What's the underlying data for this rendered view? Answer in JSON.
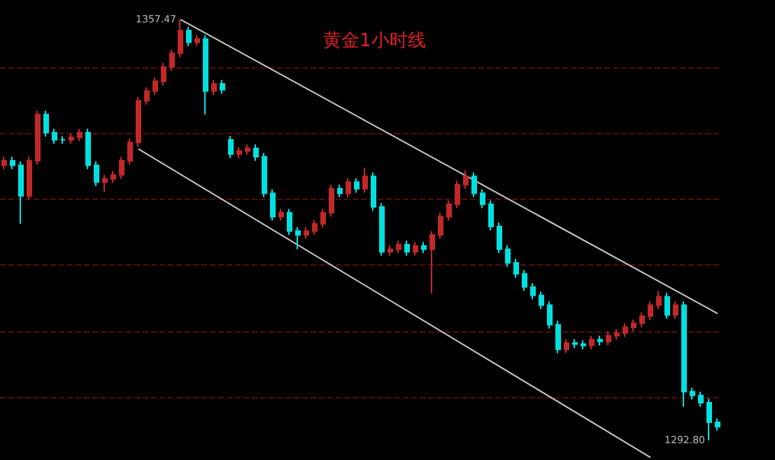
{
  "chart_data": {
    "type": "candlestick",
    "title": "黄金1小时线",
    "categories": [
      null,
      null,
      null,
      null,
      null,
      null,
      null,
      null,
      null,
      null,
      null,
      null,
      null,
      null,
      null,
      null,
      null,
      null,
      null,
      null,
      null,
      null,
      null,
      null,
      null,
      null,
      null,
      null,
      null,
      null,
      null,
      null,
      null,
      null,
      null,
      null,
      null,
      null,
      null,
      null,
      null,
      null,
      null,
      null,
      null,
      null,
      null,
      null,
      null,
      null,
      null,
      null,
      null,
      null,
      null,
      null,
      null,
      null,
      null,
      null,
      null,
      null,
      null,
      null,
      null,
      null,
      null,
      null,
      null,
      null,
      null,
      null,
      null,
      null,
      null,
      null,
      null,
      null,
      null,
      null,
      null,
      null,
      null,
      null,
      null,
      null
    ],
    "ohlc": [
      [
        1335.1,
        1336.4,
        1334.5,
        1335.8
      ],
      [
        1335.8,
        1336.4,
        1334.5,
        1335.1
      ],
      [
        1335.1,
        1335.7,
        1326.1,
        1330.4
      ],
      [
        1330.4,
        1336.4,
        1329.8,
        1335.8
      ],
      [
        1335.8,
        1343.5,
        1335.2,
        1342.9
      ],
      [
        1342.9,
        1343.5,
        1339.5,
        1340.1
      ],
      [
        1340.1,
        1340.7,
        1338.4,
        1339.0
      ],
      [
        1339.0,
        1339.6,
        1338.4,
        1339.0
      ],
      [
        1339.0,
        1340.0,
        1338.4,
        1339.4
      ],
      [
        1339.4,
        1340.7,
        1338.8,
        1340.1
      ],
      [
        1340.1,
        1340.7,
        1334.5,
        1335.1
      ],
      [
        1335.1,
        1335.7,
        1331.9,
        1332.5
      ],
      [
        1332.5,
        1333.6,
        1331.0,
        1333.0
      ],
      [
        1333.0,
        1334.2,
        1332.4,
        1333.6
      ],
      [
        1333.6,
        1336.4,
        1333.0,
        1335.8
      ],
      [
        1335.8,
        1339.2,
        1335.2,
        1338.6
      ],
      [
        1338.6,
        1345.6,
        1338.0,
        1345.0
      ],
      [
        1345.0,
        1347.1,
        1344.4,
        1346.5
      ],
      [
        1346.5,
        1348.6,
        1345.9,
        1348.0
      ],
      [
        1348.0,
        1350.8,
        1347.4,
        1350.2
      ],
      [
        1350.2,
        1352.9,
        1349.6,
        1352.3
      ],
      [
        1352.3,
        1357.47,
        1351.7,
        1355.8
      ],
      [
        1355.8,
        1356.4,
        1353.4,
        1354.0
      ],
      [
        1354.0,
        1355.1,
        1353.4,
        1354.5
      ],
      [
        1354.5,
        1355.1,
        1342.9,
        1346.5
      ],
      [
        1346.5,
        1348.2,
        1345.9,
        1347.6
      ],
      [
        1347.6,
        1348.2,
        1346.1,
        1346.7
      ],
      [
        1339.0,
        1339.6,
        1336.2,
        1336.8
      ],
      [
        1336.8,
        1337.9,
        1336.2,
        1337.3
      ],
      [
        1337.3,
        1338.3,
        1336.7,
        1337.7
      ],
      [
        1337.7,
        1338.3,
        1335.8,
        1336.4
      ],
      [
        1336.4,
        1337.0,
        1330.2,
        1330.8
      ],
      [
        1330.8,
        1331.4,
        1326.6,
        1327.2
      ],
      [
        1327.2,
        1328.4,
        1326.6,
        1327.8
      ],
      [
        1327.8,
        1328.4,
        1324.4,
        1325.0
      ],
      [
        1325.0,
        1325.6,
        1322.2,
        1324.4
      ],
      [
        1324.4,
        1325.6,
        1323.8,
        1325.0
      ],
      [
        1325.0,
        1326.7,
        1324.4,
        1326.1
      ],
      [
        1326.1,
        1328.4,
        1325.5,
        1327.8
      ],
      [
        1327.8,
        1332.1,
        1327.2,
        1331.5
      ],
      [
        1331.5,
        1332.1,
        1330.2,
        1330.8
      ],
      [
        1330.8,
        1333.1,
        1330.2,
        1332.5
      ],
      [
        1332.5,
        1333.1,
        1330.9,
        1331.5
      ],
      [
        1331.5,
        1334.7,
        1330.9,
        1333.4
      ],
      [
        1333.4,
        1334.0,
        1328.1,
        1328.7
      ],
      [
        1328.7,
        1329.3,
        1321.2,
        1321.8
      ],
      [
        1321.8,
        1322.8,
        1321.2,
        1322.2
      ],
      [
        1322.2,
        1323.5,
        1321.6,
        1322.9
      ],
      [
        1322.9,
        1323.5,
        1321.2,
        1321.8
      ],
      [
        1321.8,
        1323.3,
        1321.2,
        1322.7
      ],
      [
        1322.7,
        1323.3,
        1321.6,
        1322.2
      ],
      [
        1322.2,
        1325.0,
        1315.4,
        1324.4
      ],
      [
        1324.4,
        1327.8,
        1323.8,
        1327.2
      ],
      [
        1327.2,
        1329.7,
        1326.6,
        1329.1
      ],
      [
        1329.1,
        1332.7,
        1328.5,
        1332.1
      ],
      [
        1332.1,
        1334.3,
        1331.5,
        1333.4
      ],
      [
        1333.4,
        1334.0,
        1330.2,
        1330.8
      ],
      [
        1330.8,
        1331.4,
        1328.5,
        1329.1
      ],
      [
        1329.1,
        1329.7,
        1325.1,
        1325.7
      ],
      [
        1325.7,
        1326.3,
        1321.6,
        1322.2
      ],
      [
        1322.2,
        1322.8,
        1319.5,
        1320.1
      ],
      [
        1320.1,
        1320.7,
        1317.8,
        1318.4
      ],
      [
        1318.4,
        1319.0,
        1315.8,
        1316.4
      ],
      [
        1316.4,
        1317.0,
        1314.5,
        1315.1
      ],
      [
        1315.1,
        1315.7,
        1313.0,
        1313.6
      ],
      [
        1313.6,
        1314.2,
        1310.0,
        1310.6
      ],
      [
        1310.6,
        1311.2,
        1306.2,
        1306.8
      ],
      [
        1306.8,
        1308.4,
        1306.2,
        1307.8
      ],
      [
        1307.8,
        1308.4,
        1307.0,
        1307.6
      ],
      [
        1307.6,
        1308.2,
        1306.8,
        1307.4
      ],
      [
        1307.4,
        1308.9,
        1306.8,
        1308.3
      ],
      [
        1308.3,
        1308.9,
        1307.4,
        1308.0
      ],
      [
        1308.0,
        1309.5,
        1307.4,
        1308.9
      ],
      [
        1308.9,
        1309.9,
        1308.3,
        1309.3
      ],
      [
        1309.3,
        1310.8,
        1308.7,
        1310.2
      ],
      [
        1310.2,
        1311.4,
        1309.6,
        1310.8
      ],
      [
        1310.8,
        1312.5,
        1310.2,
        1311.9
      ],
      [
        1311.9,
        1314.2,
        1311.3,
        1313.6
      ],
      [
        1313.6,
        1315.8,
        1313.0,
        1314.9
      ],
      [
        1314.9,
        1315.5,
        1311.5,
        1312.1
      ],
      [
        1312.1,
        1314.2,
        1311.5,
        1313.6
      ],
      [
        1313.6,
        1314.2,
        1298.0,
        1300.3
      ],
      [
        1300.3,
        1300.9,
        1299.1,
        1299.7
      ],
      [
        1299.7,
        1300.3,
        1298.0,
        1298.6
      ],
      [
        1298.6,
        1299.2,
        1292.8,
        1295.6
      ],
      [
        1295.6,
        1296.2,
        1294.3,
        1294.9
      ]
    ],
    "colors": [
      "#c0282a",
      "#00e0e0",
      "#00e0e0",
      "#c0282a",
      "#c0282a",
      "#00e0e0",
      "#00e0e0",
      "#00e0e0",
      "#c0282a",
      "#c0282a",
      "#00e0e0",
      "#00e0e0",
      "#c0282a",
      "#c0282a",
      "#c0282a",
      "#c0282a",
      "#c0282a",
      "#c0282a",
      "#c0282a",
      "#c0282a",
      "#c0282a",
      "#c0282a",
      "#00e0e0",
      "#c0282a",
      "#00e0e0",
      "#c0282a",
      "#00e0e0",
      "#00e0e0",
      "#c0282a",
      "#c0282a",
      "#00e0e0",
      "#00e0e0",
      "#00e0e0",
      "#c0282a",
      "#00e0e0",
      "#00e0e0",
      "#c0282a",
      "#c0282a",
      "#c0282a",
      "#c0282a",
      "#00e0e0",
      "#c0282a",
      "#00e0e0",
      "#c0282a",
      "#00e0e0",
      "#00e0e0",
      "#c0282a",
      "#c0282a",
      "#00e0e0",
      "#c0282a",
      "#00e0e0",
      "#c0282a",
      "#c0282a",
      "#c0282a",
      "#c0282a",
      "#c0282a",
      "#00e0e0",
      "#00e0e0",
      "#00e0e0",
      "#00e0e0",
      "#00e0e0",
      "#00e0e0",
      "#00e0e0",
      "#00e0e0",
      "#00e0e0",
      "#00e0e0",
      "#00e0e0",
      "#c0282a",
      "#00e0e0",
      "#00e0e0",
      "#c0282a",
      "#00e0e0",
      "#c0282a",
      "#c0282a",
      "#c0282a",
      "#c0282a",
      "#c0282a",
      "#c0282a",
      "#c0282a",
      "#00e0e0",
      "#c0282a",
      "#00e0e0",
      "#00e0e0",
      "#00e0e0",
      "#00e0e0",
      "#00e0e0"
    ],
    "series": [
      {
        "type": "line",
        "color": "#c8c8c8",
        "values": [
          null,
          null,
          null,
          null,
          null,
          null,
          null,
          null,
          null,
          null,
          null,
          null,
          null,
          null,
          null,
          null,
          null,
          null,
          null,
          null,
          null,
          1357.5,
          null,
          null,
          null,
          null,
          null,
          null,
          null,
          null,
          null,
          null,
          null,
          null,
          null,
          null,
          null,
          null,
          null,
          null,
          null,
          null,
          null,
          null,
          null,
          null,
          null,
          null,
          null,
          null,
          null,
          null,
          null,
          null,
          null,
          null,
          null,
          null,
          null,
          null,
          null,
          null,
          null,
          null,
          null,
          null,
          null,
          null,
          null,
          null,
          null,
          null,
          null,
          null,
          null,
          null,
          null,
          null,
          null,
          null,
          null,
          null,
          null,
          null,
          null,
          1312.3
        ]
      },
      {
        "type": "line",
        "color": "#c8c8c8",
        "values": [
          null,
          null,
          null,
          null,
          null,
          null,
          null,
          null,
          null,
          null,
          null,
          null,
          null,
          null,
          null,
          null,
          1337.6,
          null,
          null,
          null,
          null,
          null,
          null,
          null,
          null,
          null,
          null,
          null,
          null,
          null,
          null,
          null,
          null,
          null,
          null,
          null,
          null,
          null,
          null,
          null,
          null,
          null,
          null,
          null,
          null,
          null,
          null,
          null,
          null,
          null,
          null,
          null,
          null,
          null,
          null,
          null,
          null,
          null,
          null,
          null,
          null,
          null,
          null,
          null,
          null,
          null,
          null,
          null,
          null,
          null,
          null,
          null,
          null,
          null,
          null,
          null,
          null,
          1290.2,
          null,
          null,
          null,
          null,
          null,
          null,
          null,
          null
        ]
      }
    ],
    "annotations": [
      "1357.47",
      "1292.80"
    ],
    "ylim": [
      1289.8,
      1360.5
    ],
    "yticks": [
      {
        "value": 1350.2,
        "label": null
      },
      {
        "value": 1340.1,
        "label": null
      },
      {
        "value": 1330.0,
        "label": null
      },
      {
        "value": 1319.9,
        "label": null
      },
      {
        "value": 1309.6,
        "label": null
      },
      {
        "value": 1299.5,
        "label": null
      }
    ],
    "grid": "y"
  }
}
